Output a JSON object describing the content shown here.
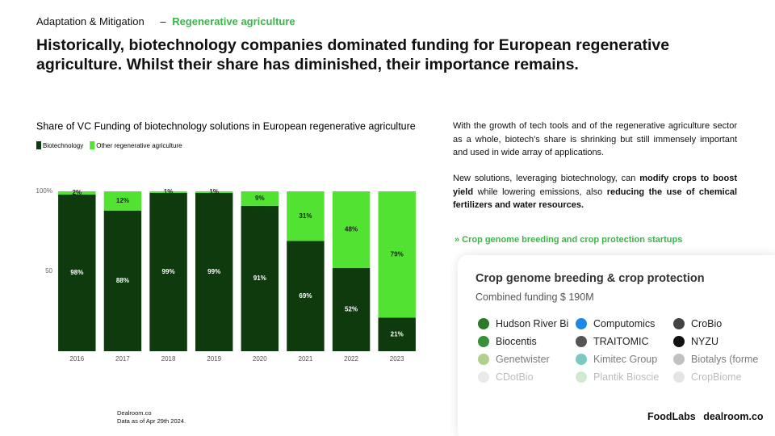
{
  "header": {
    "section": "Adaptation & Mitigation",
    "separator": "–",
    "topic": "Regenerative agriculture",
    "title": "Historically, biotechnology companies dominated funding for European regenerative agriculture. Whilst their share has diminished, their importance remains."
  },
  "chart_data": {
    "type": "stacked_bar",
    "title": "Share of VC Funding of biotechnology solutions in European regenerative agriculture",
    "categories": [
      "2016",
      "2017",
      "2018",
      "2019",
      "2020",
      "2021",
      "2022",
      "2023"
    ],
    "series": [
      {
        "name": "Biotechnology",
        "color": "#0e3a0e",
        "values": [
          98,
          88,
          99,
          99,
          91,
          69,
          52,
          21
        ],
        "value_labels": [
          "98%",
          "88%",
          "99%",
          "99%",
          "91%",
          "69%",
          "52%",
          "21%"
        ]
      },
      {
        "name": "Other regenerative agriculture",
        "color": "#52e232",
        "values": [
          2,
          12,
          1,
          1,
          9,
          31,
          48,
          79
        ],
        "value_labels": [
          "2%",
          "12%",
          "1%",
          "1%",
          "9%",
          "31%",
          "48%",
          "79%"
        ]
      }
    ],
    "ylim": [
      0,
      100
    ],
    "yticks": [
      50,
      {
        "value": 100,
        "label": "100%"
      }
    ],
    "grid": false,
    "legend": "top-left"
  },
  "text": {
    "paragraphs": [
      [
        "With the growth of tech tools and of the regenerative agriculture sector as a whole, biotech's share is shrinking but still immensely important and used in wide array of applications."
      ],
      [
        "New solutions, leveraging biotechnology, can ",
        "modify crops to boost yield",
        " while lowering emissions, also ",
        "reducing the use of chemical fertilizers and water resources."
      ]
    ],
    "link": "» Crop genome breeding and crop protection startups"
  },
  "card": {
    "title": "Crop genome breeding & crop protection",
    "subtitle": "Combined funding $ 190M",
    "companies": [
      "Hudson River Bi",
      "Computomics",
      "CroBio",
      "Biocentis",
      "TRAITOMIC",
      "NYZU",
      "Genetwister",
      "Kimitec Group",
      "Biotalys (forme",
      "CDotBio",
      "Plantik Bioscie",
      "CropBiome"
    ]
  },
  "footer": {
    "source": "Dealroom.co",
    "date": "Data as of Apr 29th 2024.",
    "brand1": "FoodLabs",
    "brand2": "dealroom.co"
  }
}
